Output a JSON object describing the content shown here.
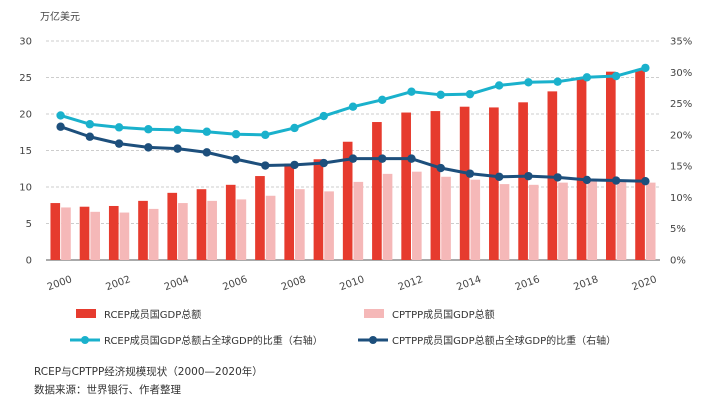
{
  "chart_data": {
    "type": "bar+line",
    "y_unit_label": "万亿美元",
    "x": [
      "2000",
      "2001",
      "2002",
      "2003",
      "2004",
      "2005",
      "2006",
      "2007",
      "2008",
      "2009",
      "2010",
      "2011",
      "2012",
      "2013",
      "2014",
      "2015",
      "2016",
      "2017",
      "2018",
      "2019",
      "2020"
    ],
    "x_tick_labels": [
      "2000",
      "2002",
      "2004",
      "2006",
      "2008",
      "2010",
      "2012",
      "2014",
      "2016",
      "2018",
      "2020"
    ],
    "ylim_left": [
      0,
      30
    ],
    "yticks_left": [
      "0",
      "5",
      "10",
      "15",
      "20",
      "25",
      "30"
    ],
    "ylim_right": [
      0,
      35
    ],
    "yticks_right": [
      "0%",
      "5%",
      "10%",
      "15%",
      "20%",
      "25%",
      "30%",
      "35%"
    ],
    "bar_series": [
      {
        "name": "RCEP成员国GDP总额",
        "color": "#e63b2e",
        "values": [
          7.8,
          7.3,
          7.4,
          8.1,
          9.2,
          9.7,
          10.3,
          11.5,
          13.2,
          13.8,
          16.2,
          18.9,
          20.2,
          20.4,
          21.0,
          20.9,
          21.6,
          23.1,
          24.8,
          25.8,
          26.1
        ]
      },
      {
        "name": "CPTPP成员国GDP总额",
        "color": "#f5b8b8",
        "values": [
          7.2,
          6.6,
          6.5,
          7.0,
          7.8,
          8.1,
          8.3,
          8.8,
          9.7,
          9.4,
          10.7,
          11.8,
          12.1,
          11.4,
          11.0,
          10.4,
          10.3,
          10.6,
          10.9,
          11.0,
          10.6
        ]
      }
    ],
    "line_series": [
      {
        "name": "RCEP成员国GDP总额占全球GDP的比重（右轴）",
        "color": "#1ab1cc",
        "values": [
          23.1,
          21.7,
          21.2,
          20.9,
          20.8,
          20.5,
          20.1,
          20.0,
          21.1,
          23.0,
          24.5,
          25.6,
          26.9,
          26.4,
          26.5,
          27.9,
          28.4,
          28.5,
          29.2,
          29.4,
          30.7
        ]
      },
      {
        "name": "CPTPP成员国GDP总额占全球GDP的比重（右轴）",
        "color": "#1d4f7c",
        "values": [
          21.3,
          19.7,
          18.6,
          18.0,
          17.8,
          17.2,
          16.1,
          15.1,
          15.2,
          15.5,
          16.2,
          16.2,
          16.2,
          14.7,
          13.8,
          13.3,
          13.4,
          13.2,
          12.8,
          12.7,
          12.6
        ]
      }
    ]
  },
  "caption": {
    "title": "RCEP与CPTPP经济规模现状（2000—2020年）",
    "source": "数据来源：世界银行、作者整理"
  }
}
